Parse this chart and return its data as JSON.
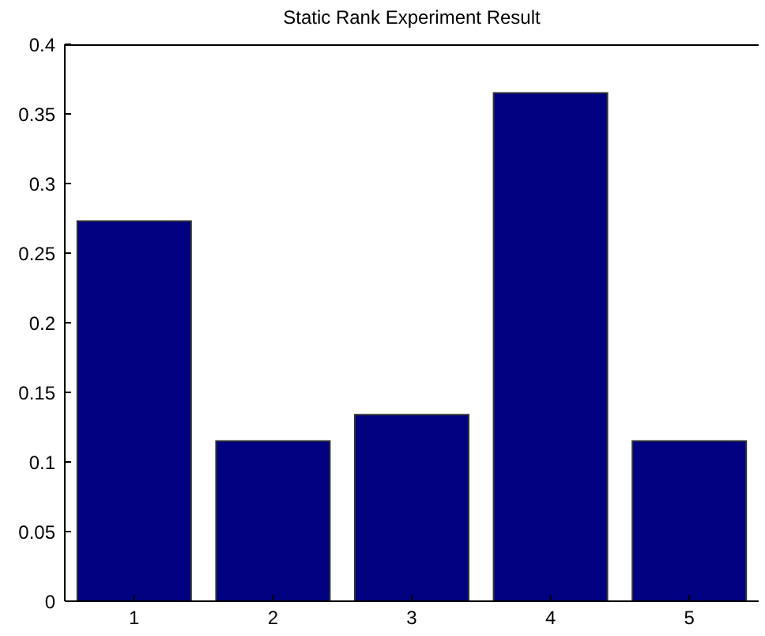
{
  "chart_data": {
    "type": "bar",
    "title": "Static Rank Experiment Result",
    "categories": [
      "1",
      "2",
      "3",
      "4",
      "5"
    ],
    "values": [
      0.273,
      0.115,
      0.134,
      0.365,
      0.115
    ],
    "color": "#000080",
    "ylim": [
      0,
      0.4
    ],
    "yticks": [
      0,
      0.05,
      0.1,
      0.15,
      0.2,
      0.25,
      0.3,
      0.35,
      0.4
    ]
  }
}
